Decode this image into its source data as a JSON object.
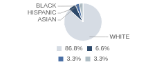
{
  "chart_data": {
    "type": "pie",
    "categories": [
      "WHITE",
      "ASIAN",
      "HISPANIC",
      "BLACK"
    ],
    "values": [
      86.8,
      6.6,
      3.3,
      3.3
    ],
    "value_labels": [
      "86.8%",
      "6.6%",
      "3.3%",
      "3.3%"
    ],
    "colors": [
      "#d6dce4",
      "#2e4a6b",
      "#4a6fa5",
      "#b0bec5"
    ],
    "legend": "bottom"
  }
}
